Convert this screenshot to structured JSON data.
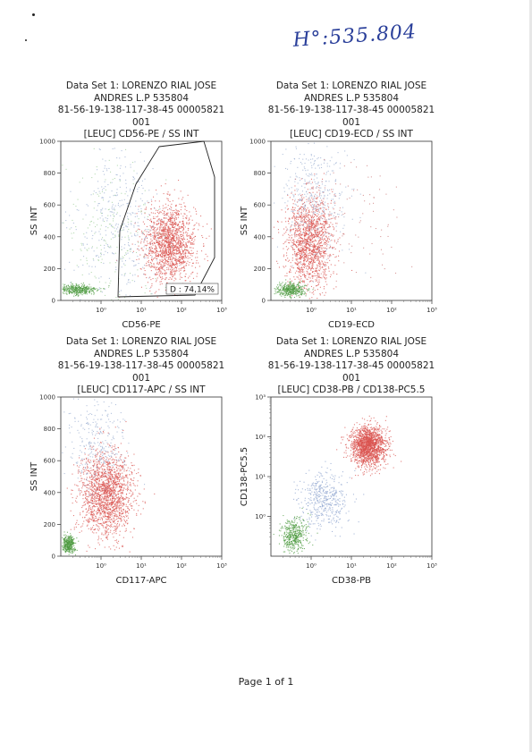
{
  "handwritten_note": "H°:535.804",
  "footer": "Page 1 of 1",
  "panels": [
    {
      "title_lines": [
        "Data Set 1: LORENZO RIAL JOSE",
        "ANDRES L.P 535804",
        "81-56-19-138-117-38-45 00005821",
        "001",
        "[LEUC] CD56-PE / SS INT"
      ]
    },
    {
      "title_lines": [
        "Data Set 1: LORENZO RIAL JOSE",
        "ANDRES L.P 535804",
        "81-56-19-138-117-38-45 00005821",
        "001",
        "[LEUC] CD19-ECD / SS INT"
      ]
    },
    {
      "title_lines": [
        "Data Set 1: LORENZO RIAL JOSE",
        "ANDRES L.P 535804",
        "81-56-19-138-117-38-45 00005821",
        "001",
        "[LEUC] CD117-APC / SS INT"
      ]
    },
    {
      "title_lines": [
        "Data Set 1: LORENZO RIAL JOSE",
        "ANDRES L.P 535804",
        "81-56-19-138-117-38-45 00005821",
        "001",
        "[LEUC] CD38-PB / CD138-PC5.5"
      ]
    }
  ],
  "chart_data": [
    {
      "type": "scatter",
      "xlabel": "CD56-PE",
      "ylabel": "SS INT",
      "x_scale": "log",
      "xlim": [
        0.1,
        1000
      ],
      "x_ticks": [
        "10⁰",
        "10¹",
        "10²",
        "10³"
      ],
      "y_scale": "linear",
      "ylim": [
        0,
        1000
      ],
      "y_ticks": [
        "0",
        "200",
        "400",
        "600",
        "800",
        "1000"
      ],
      "gate": {
        "label": "D",
        "percent": "74,14%"
      },
      "clusters": [
        {
          "color": "#d9534f",
          "x_center": 50,
          "y_center": 360,
          "x_spread_log": 0.32,
          "y_spread": 120,
          "count": 1600
        },
        {
          "color": "#4c9a3f",
          "x_center": 0.25,
          "y_center": 70,
          "x_spread_log": 0.25,
          "y_spread": 18,
          "count": 360
        },
        {
          "color": "#9aaed0",
          "x_center": 3,
          "y_center": 480,
          "x_spread_log": 0.55,
          "y_spread": 220,
          "count": 380
        },
        {
          "color": "#9fcf99",
          "x_center": 1.5,
          "y_center": 420,
          "x_spread_log": 0.6,
          "y_spread": 220,
          "count": 200
        }
      ]
    },
    {
      "type": "scatter",
      "xlabel": "CD19-ECD",
      "ylabel": "SS INT",
      "x_scale": "log",
      "xlim": [
        0.1,
        1000
      ],
      "x_ticks": [
        "10⁰",
        "10¹",
        "10²",
        "10³"
      ],
      "y_scale": "linear",
      "ylim": [
        0,
        1000
      ],
      "y_ticks": [
        "0",
        "200",
        "400",
        "600",
        "800",
        "1000"
      ],
      "clusters": [
        {
          "color": "#d9534f",
          "x_center": 0.9,
          "y_center": 380,
          "x_spread_log": 0.28,
          "y_spread": 140,
          "count": 1500
        },
        {
          "color": "#4c9a3f",
          "x_center": 0.3,
          "y_center": 70,
          "x_spread_log": 0.18,
          "y_spread": 20,
          "count": 380
        },
        {
          "color": "#9aaed0",
          "x_center": 1.2,
          "y_center": 650,
          "x_spread_log": 0.4,
          "y_spread": 180,
          "count": 380
        },
        {
          "color": "#cc7a7a",
          "x_center": 8,
          "y_center": 450,
          "x_spread_log": 0.7,
          "y_spread": 250,
          "count": 120
        }
      ]
    },
    {
      "type": "scatter",
      "xlabel": "CD117-APC",
      "ylabel": "SS INT",
      "x_scale": "log",
      "xlim": [
        0.1,
        1000
      ],
      "x_ticks": [
        "10⁰",
        "10¹",
        "10²",
        "10³"
      ],
      "y_scale": "linear",
      "ylim": [
        0,
        1000
      ],
      "y_ticks": [
        "0",
        "200",
        "400",
        "600",
        "800",
        "1000"
      ],
      "clusters": [
        {
          "color": "#d9534f",
          "x_center": 1.3,
          "y_center": 390,
          "x_spread_log": 0.33,
          "y_spread": 130,
          "count": 1800
        },
        {
          "color": "#4c9a3f",
          "x_center": 0.15,
          "y_center": 80,
          "x_spread_log": 0.08,
          "y_spread": 25,
          "count": 340
        },
        {
          "color": "#9aaed0",
          "x_center": 0.8,
          "y_center": 700,
          "x_spread_log": 0.35,
          "y_spread": 140,
          "count": 300
        }
      ]
    },
    {
      "type": "scatter",
      "xlabel": "CD38-PB",
      "ylabel": "CD138-PC5.5",
      "x_scale": "log",
      "xlim": [
        0.1,
        1000
      ],
      "x_ticks": [
        "10⁰",
        "10¹",
        "10²",
        "10³"
      ],
      "y_scale": "log",
      "ylim": [
        0.1,
        1000
      ],
      "y_ticks": [
        "10⁰",
        "10¹",
        "10²",
        "10³"
      ],
      "clusters": [
        {
          "color": "#d9534f",
          "x_center": 25,
          "y_center": 60,
          "x_spread_log": 0.22,
          "y_spread_log": 0.25,
          "count": 1700
        },
        {
          "color": "#4c9a3f",
          "x_center": 0.35,
          "y_center": 0.35,
          "x_spread_log": 0.16,
          "y_spread_log": 0.22,
          "count": 420
        },
        {
          "color": "#8aa0cc",
          "x_center": 2,
          "y_center": 2.5,
          "x_spread_log": 0.3,
          "y_spread_log": 0.35,
          "count": 420
        }
      ]
    }
  ]
}
